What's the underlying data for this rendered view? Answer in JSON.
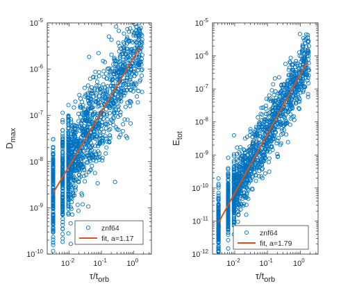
{
  "chart_data": [
    {
      "type": "scatter",
      "title": "",
      "xlabel": "τ/t_orb",
      "ylabel": "D_max",
      "xscale": "log",
      "yscale": "log",
      "xlim": [
        0.0021,
        3.5
      ],
      "ylim": [
        1e-10,
        1e-05
      ],
      "x_ticks": [
        {
          "value": 0.01,
          "mant": "10",
          "exp": "-2"
        },
        {
          "value": 0.1,
          "mant": "10",
          "exp": "-1"
        },
        {
          "value": 1,
          "mant": "10",
          "exp": "0"
        }
      ],
      "y_ticks": [
        {
          "value": 1e-10,
          "mant": "10",
          "exp": "-10"
        },
        {
          "value": 1e-09,
          "mant": "10",
          "exp": "-9"
        },
        {
          "value": 1e-08,
          "mant": "10",
          "exp": "-8"
        },
        {
          "value": 1e-07,
          "mant": "10",
          "exp": "-7"
        },
        {
          "value": 1e-06,
          "mant": "10",
          "exp": "-6"
        },
        {
          "value": 1e-05,
          "mant": "10",
          "exp": "-5"
        }
      ],
      "series": [
        {
          "name": "znf64",
          "kind": "scatter",
          "marker": "o",
          "n_points": 1500,
          "x_min": 0.0032,
          "x_max": 1.85,
          "fit_exponent": 1.17,
          "log_y_scatter": 0.5
        },
        {
          "name": "fit, a=1.17",
          "kind": "line",
          "x": [
            0.0032,
            1.6
          ],
          "y": [
            2.1e-09,
            3.1e-06
          ]
        }
      ],
      "legend": {
        "position": "bottom-center",
        "entries": [
          "znf64",
          "fit, a=1.17"
        ]
      },
      "grid": false
    },
    {
      "type": "scatter",
      "title": "",
      "xlabel": "τ/t_orb",
      "ylabel": "E_tot",
      "xscale": "log",
      "yscale": "log",
      "xlim": [
        0.0021,
        3.5
      ],
      "ylim": [
        1e-12,
        1e-05
      ],
      "x_ticks": [
        {
          "value": 0.01,
          "mant": "10",
          "exp": "-2"
        },
        {
          "value": 0.1,
          "mant": "10",
          "exp": "-1"
        },
        {
          "value": 1,
          "mant": "10",
          "exp": "0"
        }
      ],
      "y_ticks": [
        {
          "value": 1e-12,
          "mant": "10",
          "exp": "-12"
        },
        {
          "value": 1e-11,
          "mant": "10",
          "exp": "-11"
        },
        {
          "value": 1e-10,
          "mant": "10",
          "exp": "-10"
        },
        {
          "value": 1e-09,
          "mant": "10",
          "exp": "-9"
        },
        {
          "value": 1e-08,
          "mant": "10",
          "exp": "-8"
        },
        {
          "value": 1e-07,
          "mant": "10",
          "exp": "-7"
        },
        {
          "value": 1e-06,
          "mant": "10",
          "exp": "-6"
        },
        {
          "value": 1e-05,
          "mant": "10",
          "exp": "-5"
        }
      ],
      "series": [
        {
          "name": "znf64",
          "kind": "scatter",
          "marker": "o",
          "n_points": 1500,
          "x_min": 0.0032,
          "x_max": 1.85,
          "fit_exponent": 1.79,
          "log_y_scatter": 0.45
        },
        {
          "name": "fit, a=1.79",
          "kind": "line",
          "x": [
            0.0032,
            1.6
          ],
          "y": [
            9e-12,
            6.5e-07
          ]
        }
      ],
      "legend": {
        "position": "bottom-center",
        "entries": [
          "znf64",
          "fit, a=1.79"
        ]
      },
      "grid": false
    }
  ],
  "colors": {
    "marker": "#0072bd",
    "fit_line": "#d95319",
    "axis": "#262626",
    "text": "#262626"
  }
}
